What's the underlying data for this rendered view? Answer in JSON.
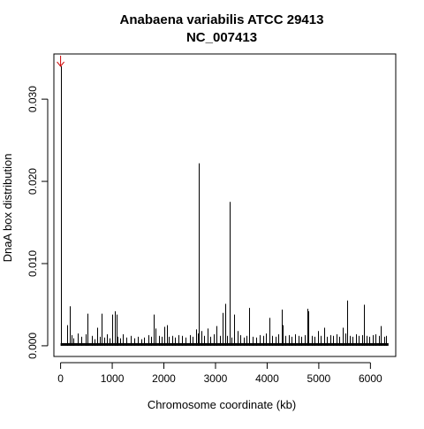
{
  "chart_data": {
    "type": "bar",
    "title": "Anabaena variabilis ATCC 29413",
    "subtitle": "NC_007413",
    "xlabel": "Chromosome coordinate (kb)",
    "ylabel": "DnaA box distribution",
    "xlim": [
      -130,
      6490
    ],
    "ylim": [
      -0.0013,
      0.0355
    ],
    "xticks": [
      0,
      1000,
      2000,
      3000,
      4000,
      5000,
      6000
    ],
    "xtick_labels": [
      "0",
      "1000",
      "2000",
      "3000",
      "4000",
      "5000",
      "6000"
    ],
    "yticks": [
      0.0,
      0.01,
      0.02,
      0.03
    ],
    "ytick_labels": [
      "0.000",
      "0.010",
      "0.020",
      "0.030"
    ],
    "grid": false,
    "arrow_marker": {
      "x": 0,
      "y": 0.034,
      "color": "#cc0000"
    },
    "series": [
      {
        "color": "#000000",
        "x": [
          5,
          120,
          185,
          210,
          250,
          330,
          400,
          480,
          520,
          600,
          650,
          700,
          760,
          800,
          850,
          900,
          950,
          1000,
          1050,
          1080,
          1100,
          1150,
          1200,
          1280,
          1350,
          1420,
          1500,
          1560,
          1620,
          1700,
          1760,
          1800,
          1830,
          1900,
          1960,
          2000,
          2060,
          2100,
          2160,
          2220,
          2280,
          2350,
          2420,
          2500,
          2560,
          2620,
          2650,
          2680,
          2720,
          2780,
          2850,
          2900,
          2960,
          3020,
          3080,
          3130,
          3190,
          3230,
          3270,
          3300,
          3360,
          3420,
          3480,
          3540,
          3600,
          3650,
          3720,
          3780,
          3850,
          3920,
          3980,
          4040,
          4100,
          4160,
          4220,
          4280,
          4300,
          4350,
          4420,
          4480,
          4540,
          4600,
          4660,
          4720,
          4780,
          4800,
          4860,
          4920,
          4980,
          5040,
          5100,
          5160,
          5220,
          5280,
          5340,
          5400,
          5460,
          5520,
          5550,
          5600,
          5660,
          5720,
          5780,
          5840,
          5880,
          5920,
          5980,
          6040,
          6100,
          6160,
          6200,
          6260,
          6300
        ],
        "values": [
          0.034,
          0.0025,
          0.0048,
          0.0013,
          0.0009,
          0.0015,
          0.0011,
          0.0014,
          0.0039,
          0.0012,
          0.0008,
          0.0022,
          0.0011,
          0.0039,
          0.001,
          0.0014,
          0.0009,
          0.0038,
          0.0042,
          0.0038,
          0.0011,
          0.0009,
          0.0014,
          0.001,
          0.0012,
          0.0009,
          0.0011,
          0.0008,
          0.001,
          0.0013,
          0.0011,
          0.0038,
          0.0021,
          0.0012,
          0.0011,
          0.0023,
          0.0025,
          0.0011,
          0.0012,
          0.001,
          0.0013,
          0.0012,
          0.001,
          0.0013,
          0.0011,
          0.002,
          0.0015,
          0.0222,
          0.0018,
          0.0012,
          0.0021,
          0.0011,
          0.0014,
          0.0024,
          0.0012,
          0.004,
          0.0051,
          0.0012,
          0.0175,
          0.001,
          0.0038,
          0.0018,
          0.0013,
          0.001,
          0.0012,
          0.0046,
          0.0011,
          0.001,
          0.0013,
          0.0012,
          0.0015,
          0.0034,
          0.0012,
          0.0011,
          0.0014,
          0.0044,
          0.0025,
          0.0012,
          0.0013,
          0.0011,
          0.0014,
          0.0012,
          0.0011,
          0.0013,
          0.0045,
          0.0042,
          0.0012,
          0.0011,
          0.0018,
          0.0012,
          0.0022,
          0.0011,
          0.0013,
          0.0012,
          0.0014,
          0.0011,
          0.0022,
          0.0015,
          0.0055,
          0.0012,
          0.0011,
          0.0014,
          0.0012,
          0.0013,
          0.005,
          0.0012,
          0.0011,
          0.0013,
          0.0014,
          0.0012,
          0.0024,
          0.0011,
          0.0012
        ]
      }
    ]
  }
}
